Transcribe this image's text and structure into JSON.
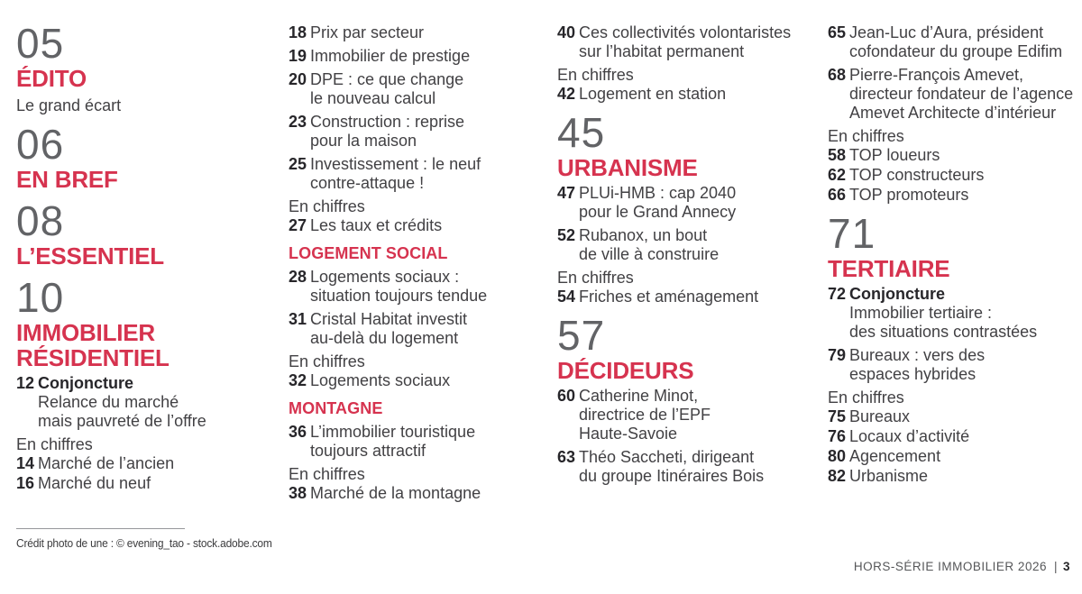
{
  "colors": {
    "accent_red": "#d6334f",
    "big_number_gray": "#626366",
    "entry_text_gray": "#424144",
    "entry_number_ink": "#27262a"
  },
  "columns": [
    {
      "items": [
        {
          "type": "major",
          "num": "05",
          "title": "ÉDITO",
          "tagline": "Le grand écart"
        },
        {
          "type": "major",
          "num": "06",
          "title": "EN BREF"
        },
        {
          "type": "major",
          "num": "08",
          "title": "L’ESSENTIEL"
        },
        {
          "type": "major",
          "num": "10",
          "title": "IMMOBILIER RÉSIDENTIEL"
        },
        {
          "type": "feature",
          "num": "12",
          "label": "Conjoncture",
          "sub": [
            "Relance du marché",
            "mais pauvreté de l’offre"
          ]
        },
        {
          "type": "label",
          "text": "En chiffres"
        },
        {
          "type": "entry",
          "num": "14",
          "lines": [
            "Marché de l’ancien"
          ]
        },
        {
          "type": "entry",
          "num": "16",
          "lines": [
            "Marché du neuf"
          ]
        }
      ]
    },
    {
      "items": [
        {
          "type": "entry",
          "num": "18",
          "lines": [
            "Prix par secteur"
          ]
        },
        {
          "type": "entry",
          "num": "19",
          "lines": [
            "Immobilier de prestige"
          ]
        },
        {
          "type": "entry",
          "num": "20",
          "lines": [
            "DPE : ce que change",
            "le nouveau calcul"
          ]
        },
        {
          "type": "entry",
          "num": "23",
          "lines": [
            "Construction : reprise",
            "pour la maison"
          ]
        },
        {
          "type": "entry",
          "num": "25",
          "lines": [
            "Investissement : le neuf",
            "contre-attaque !"
          ]
        },
        {
          "type": "label",
          "text": "En chiffres"
        },
        {
          "type": "entry",
          "num": "27",
          "lines": [
            "Les taux et crédits"
          ]
        },
        {
          "type": "subhead",
          "text": "LOGEMENT SOCIAL"
        },
        {
          "type": "entry",
          "num": "28",
          "lines": [
            "Logements sociaux :",
            "situation toujours tendue"
          ]
        },
        {
          "type": "entry",
          "num": "31",
          "lines": [
            "Cristal Habitat investit",
            "au-delà du logement"
          ]
        },
        {
          "type": "label",
          "text": "En chiffres"
        },
        {
          "type": "entry",
          "num": "32",
          "lines": [
            "Logements sociaux"
          ]
        },
        {
          "type": "subhead",
          "text": "MONTAGNE"
        },
        {
          "type": "entry",
          "num": "36",
          "lines": [
            "L’immobilier touristique",
            "toujours attractif"
          ]
        },
        {
          "type": "label",
          "text": "En chiffres"
        },
        {
          "type": "entry",
          "num": "38",
          "lines": [
            "Marché de la montagne"
          ]
        }
      ]
    },
    {
      "items": [
        {
          "type": "entry",
          "num": "40",
          "lines": [
            "Ces collectivités volontaristes",
            "sur l’habitat permanent"
          ]
        },
        {
          "type": "label",
          "text": "En chiffres"
        },
        {
          "type": "entry",
          "num": "42",
          "lines": [
            "Logement en station"
          ]
        },
        {
          "type": "major",
          "num": "45",
          "title": "URBANISME"
        },
        {
          "type": "entry",
          "num": "47",
          "lines": [
            "PLUi-HMB : cap 2040",
            "pour le Grand Annecy"
          ]
        },
        {
          "type": "entry",
          "num": "52",
          "lines": [
            "Rubanox, un bout",
            "de ville à construire"
          ]
        },
        {
          "type": "label",
          "text": "En chiffres"
        },
        {
          "type": "entry",
          "num": "54",
          "lines": [
            "Friches et aménagement"
          ]
        },
        {
          "type": "major",
          "num": "57",
          "title": "DÉCIDEURS"
        },
        {
          "type": "entry",
          "num": "60",
          "lines": [
            "Catherine Minot,",
            "directrice de l’EPF",
            "Haute-Savoie"
          ]
        },
        {
          "type": "entry",
          "num": "63",
          "lines": [
            "Théo Saccheti, dirigeant",
            "du groupe Itinéraires Bois"
          ]
        }
      ]
    },
    {
      "items": [
        {
          "type": "entry",
          "num": "65",
          "lines": [
            "Jean-Luc d’Aura, président",
            "cofondateur du groupe Edifim"
          ]
        },
        {
          "type": "entry",
          "num": "68",
          "lines": [
            "Pierre-François Amevet,",
            "directeur fondateur de l’agence",
            "Amevet Architecte d’intérieur"
          ]
        },
        {
          "type": "label",
          "text": "En chiffres"
        },
        {
          "type": "entry",
          "num": "58",
          "lines": [
            "TOP loueurs"
          ]
        },
        {
          "type": "entry",
          "num": "62",
          "lines": [
            "TOP constructeurs"
          ]
        },
        {
          "type": "entry",
          "num": "66",
          "lines": [
            "TOP promoteurs"
          ]
        },
        {
          "type": "major",
          "num": "71",
          "title": "TERTIAIRE"
        },
        {
          "type": "feature",
          "num": "72",
          "label": "Conjoncture",
          "sub": [
            "Immobilier tertiaire :",
            "des situations contrastées"
          ]
        },
        {
          "type": "entry",
          "num": "79",
          "lines": [
            "Bureaux : vers des",
            "espaces hybrides"
          ]
        },
        {
          "type": "label",
          "text": "En chiffres"
        },
        {
          "type": "entry",
          "num": "75",
          "lines": [
            "Bureaux"
          ]
        },
        {
          "type": "entry",
          "num": "76",
          "lines": [
            "Locaux d’activité"
          ]
        },
        {
          "type": "entry",
          "num": "80",
          "lines": [
            "Agencement"
          ]
        },
        {
          "type": "entry",
          "num": "82",
          "lines": [
            "Urbanisme"
          ]
        }
      ]
    }
  ],
  "footer": {
    "credit": "Crédit photo de une : © evening_tao - stock.adobe.com",
    "issue": "HORS-SÉRIE IMMOBILIER 2026",
    "separator": "|",
    "page_number": "3"
  }
}
